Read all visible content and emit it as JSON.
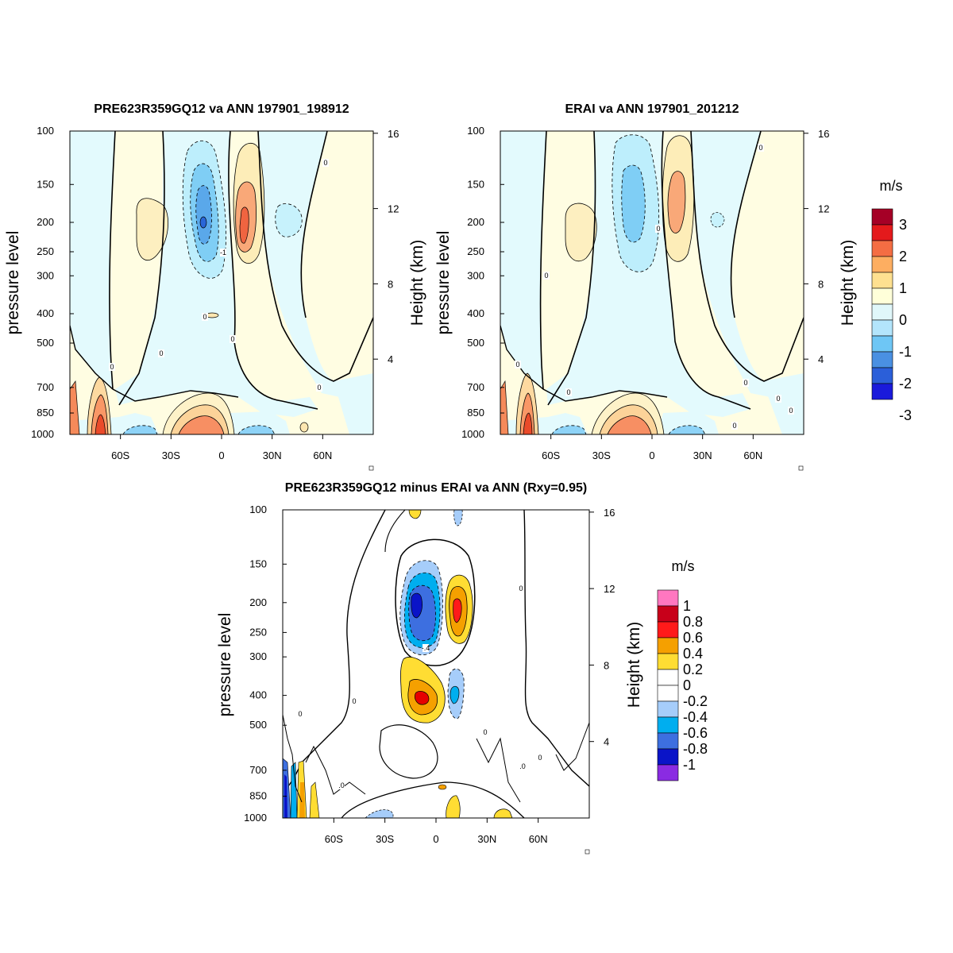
{
  "chart_data": [
    {
      "type": "contour",
      "id": "p1",
      "title": "PRE623R359GQ12 va ANN 197901_198912",
      "ylabel": "pressure level",
      "y2label": "Height (km)",
      "y_ticks": [
        "100",
        "150",
        "200",
        "250",
        "300",
        "400",
        "500",
        "700",
        "850",
        "1000"
      ],
      "y2_ticks": [
        "16",
        "12",
        "8",
        "4"
      ],
      "x_ticks": [
        "60S",
        "30S",
        "0",
        "30N",
        "60N"
      ],
      "ylim": [
        1000,
        100
      ],
      "xlim": [
        -90,
        90
      ],
      "contour_labels": [
        "0",
        "0",
        "0",
        "0",
        "0",
        "-1",
        "0"
      ]
    },
    {
      "type": "contour",
      "id": "p2",
      "title": "ERAI va ANN 197901_201212",
      "ylabel": "pressure level",
      "y2label": "Height (km)",
      "y_ticks": [
        "100",
        "150",
        "200",
        "250",
        "300",
        "400",
        "500",
        "700",
        "850",
        "1000"
      ],
      "y2_ticks": [
        "16",
        "12",
        "8",
        "4"
      ],
      "x_ticks": [
        "60S",
        "30S",
        "0",
        "30N",
        "60N"
      ],
      "ylim": [
        1000,
        100
      ],
      "xlim": [
        -90,
        90
      ],
      "contour_labels": [
        "0",
        "0",
        "0",
        "0",
        "0",
        "0",
        "0",
        "0",
        "0"
      ]
    },
    {
      "type": "contour",
      "id": "p3",
      "title": "PRE623R359GQ12 minus ERAI va ANN (Rxy=0.95)",
      "ylabel": "pressure level",
      "y2label": "Height (km)",
      "y_ticks": [
        "100",
        "150",
        "200",
        "250",
        "300",
        "400",
        "500",
        "700",
        "850",
        "1000"
      ],
      "y2_ticks": [
        "16",
        "12",
        "8",
        "4"
      ],
      "x_ticks": [
        "60S",
        "30S",
        "0",
        "30N",
        "60N"
      ],
      "ylim": [
        1000,
        100
      ],
      "xlim": [
        -90,
        90
      ],
      "contour_labels": [
        "0",
        "0",
        "0",
        "0",
        ".0",
        ".0",
        "0",
        "-.4"
      ]
    }
  ],
  "colorbars": [
    {
      "unit": "m/s",
      "labels": [
        "3",
        "2",
        "1",
        "0",
        "-1",
        "-2",
        "-3"
      ],
      "colors": [
        "#a50026",
        "#e41a1c",
        "#f46d43",
        "#fdae61",
        "#fee090",
        "#ffffd9",
        "#e0f7fa",
        "#b3e5fc",
        "#6ec6f5",
        "#4a90e2",
        "#2b5fd9",
        "#1a1adb"
      ]
    },
    {
      "unit": "m/s",
      "labels": [
        "1",
        "0.8",
        "0.6",
        "0.4",
        "0.2",
        "0",
        "-0.2",
        "-0.4",
        "-0.6",
        "-0.8",
        "-1"
      ],
      "colors": [
        "#ff77c0",
        "#c8001a",
        "#ff1a1a",
        "#f5a000",
        "#ffdd33",
        "#ffffff",
        "#ffffff",
        "#a6cdfa",
        "#00aeef",
        "#3d6fe0",
        "#0a14c8",
        "#8a2be2"
      ]
    }
  ],
  "colors": {
    "axes": "#000000",
    "land_shade": "#888888"
  }
}
